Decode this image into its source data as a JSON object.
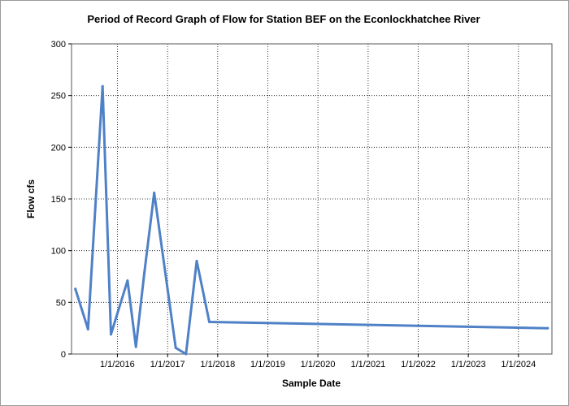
{
  "chart_data": {
    "type": "line",
    "title": "Period of Record Graph of Flow for Station BEF on the Econlockhatchee River",
    "xlabel": "Sample Date",
    "ylabel": "Flow cfs",
    "x_type": "date",
    "xlim": [
      "2015-02-01",
      "2024-09-01"
    ],
    "ylim": [
      0,
      300
    ],
    "y_ticks": [
      0,
      50,
      100,
      150,
      200,
      250,
      300
    ],
    "x_ticks": [
      "2016-01-01",
      "2017-01-01",
      "2018-01-01",
      "2019-01-01",
      "2020-01-01",
      "2021-01-01",
      "2022-01-01",
      "2023-01-01",
      "2024-01-01"
    ],
    "x_tick_labels": [
      "1/1/2016",
      "1/1/2017",
      "1/1/2018",
      "1/1/2019",
      "1/1/2020",
      "1/1/2021",
      "1/1/2022",
      "1/1/2023",
      "1/1/2024"
    ],
    "grid": true,
    "series": [
      {
        "color": "#4f81c7",
        "points": [
          {
            "x": "2015-03-01",
            "y": 63
          },
          {
            "x": "2015-06-01",
            "y": 24
          },
          {
            "x": "2015-09-15",
            "y": 259
          },
          {
            "x": "2015-11-15",
            "y": 19
          },
          {
            "x": "2016-03-15",
            "y": 71
          },
          {
            "x": "2016-05-15",
            "y": 7
          },
          {
            "x": "2016-07-15",
            "y": 78
          },
          {
            "x": "2016-09-25",
            "y": 156
          },
          {
            "x": "2017-03-01",
            "y": 6
          },
          {
            "x": "2017-05-15",
            "y": 0
          },
          {
            "x": "2017-08-01",
            "y": 90
          },
          {
            "x": "2017-11-01",
            "y": 31
          },
          {
            "x": "2024-08-01",
            "y": 25
          }
        ]
      }
    ]
  }
}
